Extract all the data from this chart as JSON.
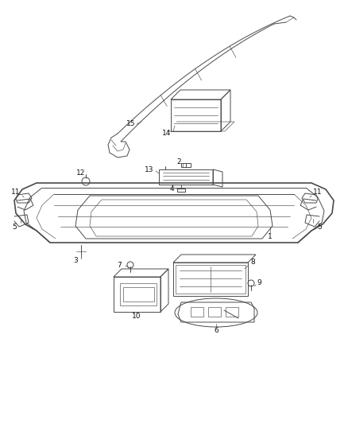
{
  "bg_color": "#ffffff",
  "line_color": "#4a4a4a",
  "label_color": "#111111",
  "figsize": [
    4.38,
    5.33
  ],
  "dpi": 100
}
